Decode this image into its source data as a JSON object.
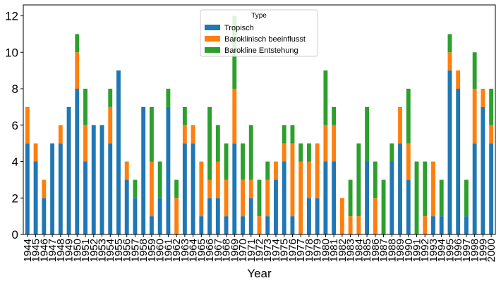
{
  "chart_data": {
    "type": "bar",
    "stacked": true,
    "xlabel": "Year",
    "ylabel": "",
    "ylim": [
      0,
      12.6
    ],
    "yticks": [
      0,
      2,
      4,
      6,
      8,
      10,
      12
    ],
    "grid": false,
    "legend": {
      "title": "Type",
      "placement": "top-center"
    },
    "categories": [
      "1944",
      "1945",
      "1946",
      "1947",
      "1948",
      "1949",
      "1950",
      "1951",
      "1952",
      "1953",
      "1954",
      "1955",
      "1956",
      "1957",
      "1958",
      "1959",
      "1960",
      "1961",
      "1962",
      "1963",
      "1964",
      "1965",
      "1966",
      "1967",
      "1968",
      "1969",
      "1970",
      "1971",
      "1972",
      "1973",
      "1974",
      "1975",
      "1976",
      "1977",
      "1978",
      "1979",
      "1980",
      "1981",
      "1982",
      "1983",
      "1984",
      "1985",
      "1986",
      "1987",
      "1988",
      "1989",
      "1990",
      "1991",
      "1992",
      "1993",
      "1994",
      "1995",
      "1996",
      "1997",
      "1998",
      "1999",
      "2000"
    ],
    "series": [
      {
        "name": "Tropisch",
        "color": "#1f77b4",
        "values": [
          5,
          4,
          2,
          5,
          5,
          7,
          8,
          4,
          6,
          6,
          5,
          9,
          3,
          2,
          7,
          1,
          2,
          7,
          0,
          5,
          5,
          1,
          2,
          2,
          1,
          5,
          1,
          2,
          0,
          1,
          3,
          4,
          1,
          0,
          2,
          2,
          4,
          4,
          0,
          0,
          0,
          4,
          0,
          0,
          4,
          5,
          3,
          0,
          0,
          1,
          1,
          9,
          8,
          1,
          5,
          7,
          5
        ]
      },
      {
        "name": "Baroklinisch beeinflusst",
        "color": "#ff7f0e",
        "values": [
          2,
          1,
          1,
          0,
          1,
          0,
          2,
          2,
          0,
          0,
          2,
          0,
          1,
          0,
          0,
          3,
          0,
          0,
          2,
          1,
          1,
          3,
          1,
          2,
          2,
          3,
          2,
          1,
          1,
          2,
          1,
          1,
          4,
          4,
          2,
          3,
          2,
          2,
          2,
          1,
          1,
          0,
          2,
          0,
          0,
          2,
          2,
          0,
          1,
          3,
          0,
          1,
          1,
          0,
          3,
          1,
          1
        ]
      },
      {
        "name": "Barokline Entstehung",
        "color": "#2ca02c",
        "values": [
          0,
          0,
          0,
          0,
          0,
          0,
          1,
          2,
          0,
          0,
          1,
          0,
          0,
          1,
          0,
          3,
          2,
          1,
          1,
          1,
          0,
          0,
          4,
          2,
          2,
          4,
          2,
          3,
          2,
          1,
          0,
          1,
          1,
          1,
          1,
          0,
          3,
          1,
          0,
          2,
          4,
          3,
          2,
          3,
          1,
          0,
          3,
          4,
          3,
          0,
          2,
          1,
          0,
          2,
          2,
          0,
          2
        ]
      }
    ]
  }
}
